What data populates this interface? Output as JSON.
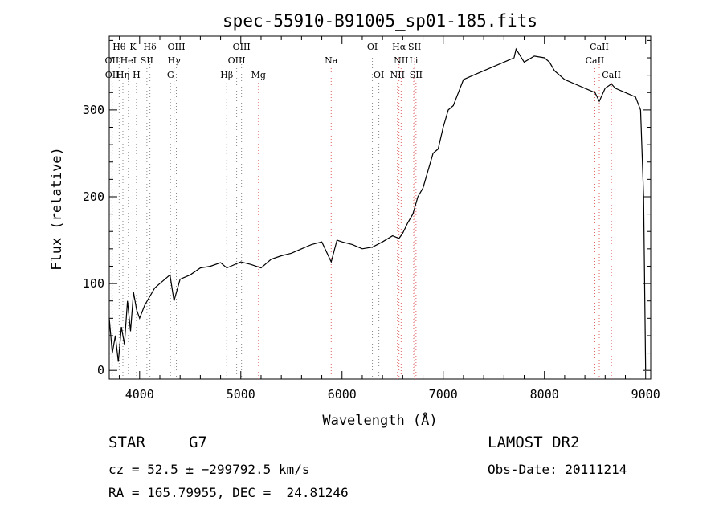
{
  "chart_data": {
    "type": "line",
    "title": "spec-55910-B91005_sp01-185.fits",
    "xlabel": "Wavelength (Å)",
    "ylabel": "Flux (relative)",
    "xlim": [
      3700,
      9050
    ],
    "ylim": [
      -10,
      385
    ],
    "xticks": [
      4000,
      5000,
      6000,
      7000,
      8000,
      9000
    ],
    "yticks": [
      0,
      100,
      200,
      300
    ],
    "grid": false,
    "series": [
      {
        "x": [
          3700,
          3730,
          3760,
          3790,
          3820,
          3850,
          3880,
          3910,
          3940,
          3970,
          4000,
          4050,
          4100,
          4150,
          4200,
          4250,
          4300,
          4340,
          4400,
          4500,
          4600,
          4700,
          4800,
          4861,
          4900,
          5000,
          5100,
          5200,
          5300,
          5400,
          5500,
          5600,
          5700,
          5800,
          5893,
          5950,
          6000,
          6100,
          6200,
          6300,
          6400,
          6500,
          6563,
          6600,
          6650,
          6700,
          6750,
          6800,
          6850,
          6900,
          6950,
          7000,
          7050,
          7100,
          7150,
          7200,
          7300,
          7400,
          7500,
          7600,
          7700,
          7720,
          7800,
          7900,
          8000,
          8050,
          8100,
          8200,
          8300,
          8400,
          8500,
          8542,
          8600,
          8662,
          8700,
          8800,
          8900,
          8950,
          8980,
          9000
        ],
        "y": [
          60,
          20,
          40,
          10,
          50,
          30,
          80,
          45,
          90,
          70,
          60,
          75,
          85,
          95,
          100,
          105,
          110,
          80,
          105,
          110,
          118,
          120,
          124,
          118,
          120,
          125,
          122,
          118,
          128,
          132,
          135,
          140,
          145,
          148,
          125,
          150,
          148,
          145,
          140,
          142,
          148,
          155,
          152,
          158,
          170,
          180,
          200,
          210,
          230,
          250,
          255,
          280,
          300,
          305,
          320,
          335,
          340,
          345,
          350,
          355,
          360,
          370,
          355,
          362,
          360,
          355,
          345,
          335,
          330,
          325,
          320,
          310,
          325,
          330,
          325,
          320,
          315,
          300,
          200,
          0
        ]
      }
    ],
    "lines": [
      {
        "label": "Hθ",
        "wave": 3798,
        "row": 1
      },
      {
        "label": "K",
        "wave": 3934,
        "row": 1
      },
      {
        "label": "Hδ",
        "wave": 4102,
        "row": 1
      },
      {
        "label": "OIII",
        "wave": 4363,
        "row": 1
      },
      {
        "label": "OIII",
        "wave": 5007,
        "row": 1
      },
      {
        "label": "OI",
        "wave": 6300,
        "row": 1
      },
      {
        "label": "Hα",
        "wave": 6563,
        "row": 1
      },
      {
        "label": "SII",
        "wave": 6717,
        "row": 1
      },
      {
        "label": "CaII",
        "wave": 8542,
        "row": 1
      },
      {
        "label": "OII",
        "wave": 3727,
        "row": 2
      },
      {
        "label": "HeI",
        "wave": 3889,
        "row": 2
      },
      {
        "label": "SII",
        "wave": 4072,
        "row": 2
      },
      {
        "label": "Hγ",
        "wave": 4340,
        "row": 2
      },
      {
        "label": "OIII",
        "wave": 4959,
        "row": 2
      },
      {
        "label": "Na",
        "wave": 5893,
        "row": 2
      },
      {
        "label": "NII",
        "wave": 6584,
        "row": 2
      },
      {
        "label": "Li",
        "wave": 6708,
        "row": 2
      },
      {
        "label": "CaII",
        "wave": 8498,
        "row": 2
      },
      {
        "label": "OII",
        "wave": 3729,
        "row": 3
      },
      {
        "label": "Hη",
        "wave": 3835,
        "row": 3
      },
      {
        "label": "H",
        "wave": 3969,
        "row": 3
      },
      {
        "label": "G",
        "wave": 4305,
        "row": 3
      },
      {
        "label": "Hβ",
        "wave": 4861,
        "row": 3
      },
      {
        "label": "Mg",
        "wave": 5175,
        "row": 3
      },
      {
        "label": "OI",
        "wave": 6364,
        "row": 3
      },
      {
        "label": "NII",
        "wave": 6548,
        "row": 3
      },
      {
        "label": "SII",
        "wave": 6731,
        "row": 3
      },
      {
        "label": "CaII",
        "wave": 8662,
        "row": 3
      }
    ]
  },
  "info": {
    "object_type": "STAR",
    "spectral_class": "G7",
    "survey": "LAMOST DR2",
    "cz": "cz = 52.5 ± −299792.5 km/s",
    "obs_date": "Obs-Date: 20111214",
    "radec": "RA = 165.79955, DEC =  24.81246"
  }
}
